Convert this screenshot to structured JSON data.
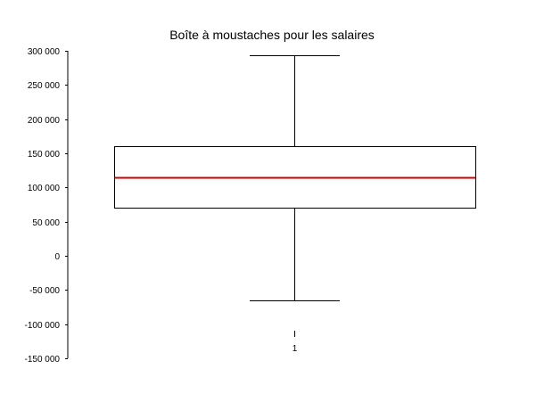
{
  "chart_data": {
    "type": "box",
    "title": "Boîte à moustaches pour les salaires",
    "xlabel": "",
    "ylabel": "",
    "ylim": [
      -150000,
      300000
    ],
    "y_ticks": [
      -150000,
      -100000,
      -50000,
      0,
      50000,
      100000,
      150000,
      200000,
      250000,
      300000
    ],
    "y_tick_labels": [
      "-150 000",
      "-100 000",
      "-50 000",
      "0",
      "50 000",
      "100 000",
      "150 000",
      "200 000",
      "250 000",
      "300 000"
    ],
    "categories": [
      "1"
    ],
    "boxes": [
      {
        "category": "1",
        "whisker_low": -65000,
        "q1": 70000,
        "median": 115000,
        "q3": 160000,
        "whisker_high": 294000
      }
    ],
    "grid": false,
    "colors": {
      "median": "#cc0000",
      "box": "#000000",
      "axis": "#000000"
    }
  }
}
